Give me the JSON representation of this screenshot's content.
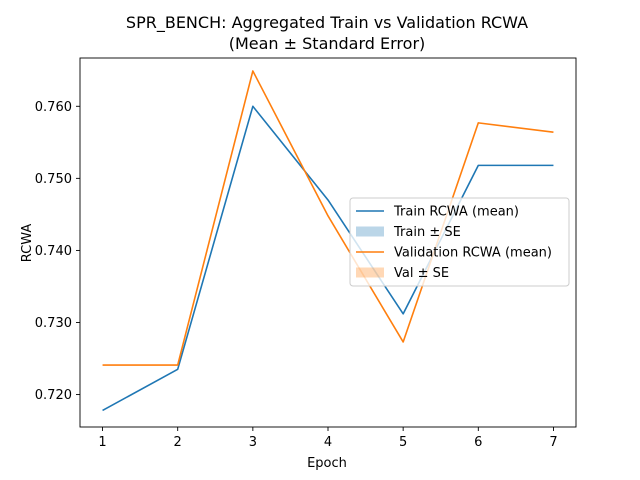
{
  "chart_data": {
    "type": "line",
    "title": "SPR_BENCH: Aggregated Train vs Validation RCWA",
    "subtitle": "(Mean ± Standard Error)",
    "xlabel": "Epoch",
    "ylabel": "RCWA",
    "x": [
      1,
      2,
      3,
      4,
      5,
      6,
      7
    ],
    "xticks": [
      "1",
      "2",
      "3",
      "4",
      "5",
      "6",
      "7"
    ],
    "yticks": [
      "0.720",
      "0.730",
      "0.740",
      "0.750",
      "0.760"
    ],
    "xlim": [
      0.7,
      7.3
    ],
    "ylim": [
      0.7155,
      0.7667
    ],
    "grid": false,
    "legend_position": "center-right",
    "series": [
      {
        "name": "Train RCWA (mean)",
        "color": "#1f77b4",
        "values": [
          0.7178,
          0.7235,
          0.76,
          0.747,
          0.7312,
          0.7518,
          0.7518
        ]
      },
      {
        "name": "Validation RCWA (mean)",
        "color": "#ff7f0e",
        "values": [
          0.7241,
          0.7241,
          0.7649,
          0.7448,
          0.7273,
          0.7577,
          0.7564
        ]
      }
    ],
    "bands": [
      {
        "name": "Train ± SE",
        "color": "#1f77b4",
        "opacity": 0.3
      },
      {
        "name": "Val ± SE",
        "color": "#ff7f0e",
        "opacity": 0.3
      }
    ]
  }
}
